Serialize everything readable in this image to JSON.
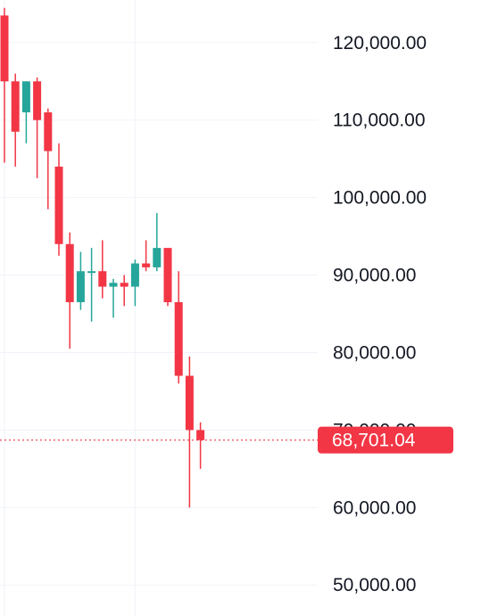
{
  "chart_data": {
    "type": "candlestick",
    "y_axis": {
      "ticks": [
        120000,
        110000,
        100000,
        90000,
        80000,
        70000,
        60000,
        50000
      ],
      "tick_labels": [
        "120,000.00",
        "110,000.00",
        "100,000.00",
        "90,000.00",
        "80,000.00",
        "70,000.00",
        "60,000.00",
        "50,000.00"
      ],
      "ylim": [
        46000,
        125500
      ],
      "side": "right",
      "grid": true
    },
    "x_axis": {
      "labels": [],
      "grid_lines_at_candle": [
        0,
        12
      ]
    },
    "last_price": {
      "value": 68701.04,
      "label": "68,701.04"
    },
    "colors": {
      "up": "#26a69a",
      "down": "#f23645",
      "grid": "#f0f3fa",
      "text": "#131722",
      "price_line": "#f23645"
    },
    "candles": [
      {
        "open": 123500,
        "high": 124500,
        "low": 104500,
        "close": 115000
      },
      {
        "open": 115000,
        "high": 116000,
        "low": 104000,
        "close": 108500
      },
      {
        "open": 111000,
        "high": 115000,
        "low": 107000,
        "close": 115000
      },
      {
        "open": 115000,
        "high": 115500,
        "low": 102500,
        "close": 110000
      },
      {
        "open": 111000,
        "high": 111500,
        "low": 98500,
        "close": 106000
      },
      {
        "open": 104000,
        "high": 107000,
        "low": 92500,
        "close": 94000
      },
      {
        "open": 94000,
        "high": 95500,
        "low": 80500,
        "close": 86500
      },
      {
        "open": 86500,
        "high": 93000,
        "low": 85500,
        "close": 90500
      },
      {
        "open": 90500,
        "high": 93500,
        "low": 84000,
        "close": 90500
      },
      {
        "open": 90500,
        "high": 94500,
        "low": 87000,
        "close": 88500
      },
      {
        "open": 88500,
        "high": 89500,
        "low": 84500,
        "close": 89000
      },
      {
        "open": 89000,
        "high": 90000,
        "low": 86000,
        "close": 88500
      },
      {
        "open": 88500,
        "high": 92000,
        "low": 86000,
        "close": 91500
      },
      {
        "open": 91500,
        "high": 94500,
        "low": 90500,
        "close": 91000
      },
      {
        "open": 91000,
        "high": 98000,
        "low": 90500,
        "close": 93500
      },
      {
        "open": 93500,
        "high": 93500,
        "low": 86000,
        "close": 86500
      },
      {
        "open": 86500,
        "high": 90500,
        "low": 76000,
        "close": 77000
      },
      {
        "open": 77000,
        "high": 79500,
        "low": 60000,
        "close": 70000
      },
      {
        "open": 70000,
        "high": 71000,
        "low": 65000,
        "close": 68701.04
      }
    ]
  }
}
